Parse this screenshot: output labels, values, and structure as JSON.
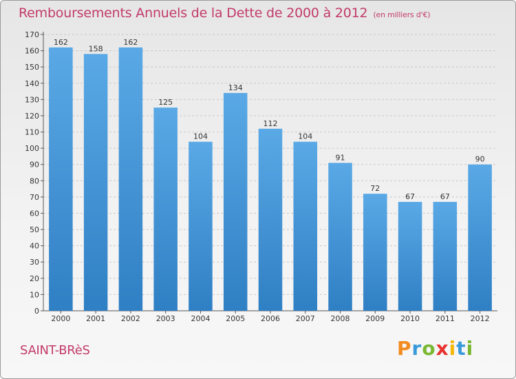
{
  "page": {
    "title": "Remboursements Annuels de la Dette de 2000 à 2012",
    "unit": "(en milliers d'€)",
    "commune": "SAINT-BRèS",
    "logo": {
      "letters": [
        "P",
        "r",
        "o",
        "x",
        "i",
        "t",
        "i"
      ],
      "colors": [
        "#f28c1e",
        "#3a9ad9",
        "#7ab833",
        "#e8322f",
        "#f5b700",
        "#3a9ad9",
        "#7ab833"
      ]
    }
  },
  "chart_data": {
    "type": "bar",
    "title": "Remboursements Annuels de la Dette de 2000 à 2012",
    "unit": "(en milliers d'€)",
    "categories": [
      "2000",
      "2001",
      "2002",
      "2003",
      "2004",
      "2005",
      "2006",
      "2007",
      "2008",
      "2009",
      "2010",
      "2011",
      "2012"
    ],
    "values": [
      162,
      158,
      162,
      125,
      104,
      134,
      112,
      104,
      91,
      72,
      67,
      67,
      90
    ],
    "ylim": [
      0,
      170
    ],
    "yticks": [
      0,
      10,
      20,
      30,
      40,
      50,
      60,
      70,
      80,
      90,
      100,
      110,
      120,
      130,
      140,
      150,
      160,
      170
    ],
    "grid": true,
    "bar_color": "#5aa9e6",
    "bar_color_dark": "#2f7fc4"
  }
}
